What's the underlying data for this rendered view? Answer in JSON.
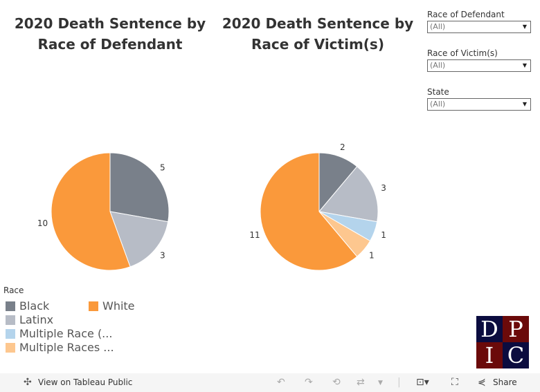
{
  "filters": [
    {
      "label": "Race of Defendant",
      "value": "(All)"
    },
    {
      "label": "Race of Victim(s)",
      "value": "(All)"
    },
    {
      "label": "State",
      "value": "(All)"
    }
  ],
  "legend": {
    "title": "Race",
    "items": [
      {
        "label": "Black",
        "color": "#79808a"
      },
      {
        "label": "Latinx",
        "color": "#b7bcc6"
      },
      {
        "label": "Multiple Race (...",
        "color": "#b4d4ec"
      },
      {
        "label": "Multiple Races ...",
        "color": "#fdc78f"
      },
      {
        "label": "White",
        "color": "#fa993b"
      }
    ]
  },
  "chart_data": [
    {
      "type": "pie",
      "title": "2020 Death Sentence by Race of Defendant",
      "title_lines": [
        "2020 Death Sentence by",
        "Race of Defendant"
      ],
      "categories": [
        "Black",
        "Latinx",
        "White"
      ],
      "values": [
        5,
        3,
        10
      ]
    },
    {
      "type": "pie",
      "title": "2020 Death Sentence by Race of Victim(s)",
      "title_lines": [
        "2020 Death Sentence by",
        "Race of Victim(s)"
      ],
      "categories": [
        "Black",
        "Latinx",
        "Multiple Race (...",
        "Multiple Races ...",
        "White"
      ],
      "values": [
        2,
        3,
        1,
        1,
        11
      ]
    }
  ],
  "logo": {
    "letters": [
      "D",
      "P",
      "I",
      "C"
    ]
  },
  "toolbar": {
    "view_label": "View on Tableau Public",
    "share_label": "Share"
  }
}
